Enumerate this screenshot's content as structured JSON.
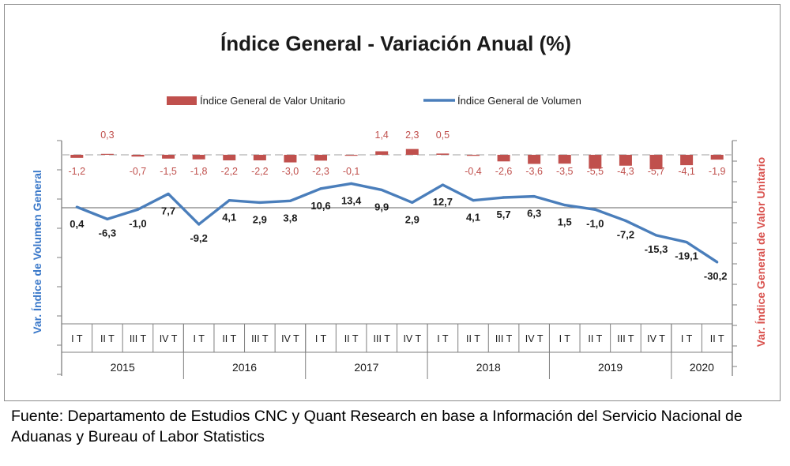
{
  "chart_data": {
    "type": "line",
    "title": "Índice General - Variación Anual (%)",
    "categories": [
      "I T",
      "II T",
      "III T",
      "IV T",
      "I T",
      "II T",
      "III T",
      "IV T",
      "I T",
      "II T",
      "III T",
      "IV T",
      "I T",
      "II T",
      "III T",
      "IV T",
      "I T",
      "II T",
      "III T",
      "IV T",
      "I T",
      "II T"
    ],
    "years": [
      {
        "label": "2015",
        "count": 4
      },
      {
        "label": "2016",
        "count": 4
      },
      {
        "label": "2017",
        "count": 4
      },
      {
        "label": "2018",
        "count": 4
      },
      {
        "label": "2019",
        "count": 4
      },
      {
        "label": "2020",
        "count": 2
      }
    ],
    "series": [
      {
        "name": "Índice General de Valor Unitario",
        "type": "bar",
        "axis": "right",
        "color": "#c0504d",
        "values": [
          -1.2,
          0.3,
          -0.7,
          -1.5,
          -1.8,
          -2.2,
          -2.2,
          -3.0,
          -2.3,
          -0.1,
          1.4,
          2.3,
          0.5,
          -0.4,
          -2.6,
          -3.6,
          -3.5,
          -5.5,
          -4.3,
          -5.7,
          -4.1,
          -1.9
        ],
        "labels": [
          "-1,2",
          "0,3",
          "-0,7",
          "-1,5",
          "-1,8",
          "-2,2",
          "-2,2",
          "-3,0",
          "-2,3",
          "-0,1",
          "1,4",
          "2,3",
          "0,5",
          "-0,4",
          "-2,6",
          "-3,6",
          "-3,5",
          "-5,5",
          "-4,3",
          "-5,7",
          "-4,1",
          "-1,9"
        ]
      },
      {
        "name": "Índice General de Volumen",
        "type": "line",
        "axis": "left",
        "color": "#4a7ebb",
        "values": [
          0.4,
          -6.3,
          -1.0,
          7.7,
          -9.2,
          4.1,
          2.9,
          3.8,
          10.6,
          13.4,
          9.9,
          2.9,
          12.7,
          4.1,
          5.7,
          6.3,
          1.5,
          -1.0,
          -7.2,
          -15.3,
          -19.1,
          -30.2
        ],
        "labels": [
          "0,4",
          "-6,3",
          "-1,0",
          "7,7",
          "-9,2",
          "4,1",
          "2,9",
          "3,8",
          "10,6",
          "13,4",
          "9,9",
          "2,9",
          "12,7",
          "4,1",
          "5,7",
          "6,3",
          "1,5",
          "-1,0",
          "-7,2",
          "-15,3",
          "-19,1",
          "-30,2"
        ]
      }
    ],
    "ylabel_left": "Var. Índice de Volumen General",
    "ylabel_right": "Var. Índice General de Valor Unitario",
    "legend_position": "top-center",
    "grid": false
  },
  "source_note": "Fuente: Departamento de Estudios CNC y Quant Research en base a Información del Servicio Nacional de  Aduanas y Bureau of Labor Statistics",
  "colors": {
    "bar": "#c0504d",
    "line": "#4a7ebb",
    "left_axis_title": "#3a78c9",
    "right_axis_title": "#d9534f"
  }
}
